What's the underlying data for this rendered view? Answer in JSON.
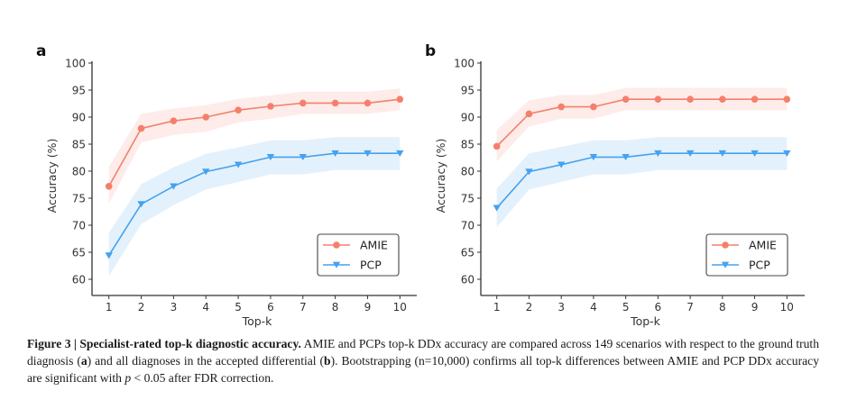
{
  "chart_data": [
    {
      "type": "line",
      "panel": "a",
      "title": "",
      "xlabel": "Top-k",
      "ylabel": "Accuracy (%)",
      "x": [
        1,
        2,
        3,
        4,
        5,
        6,
        7,
        8,
        9,
        10
      ],
      "xticks": [
        "1",
        "2",
        "3",
        "4",
        "5",
        "6",
        "7",
        "8",
        "9",
        "10"
      ],
      "yticks": [
        "60",
        "65",
        "70",
        "75",
        "80",
        "85",
        "90",
        "95",
        "100"
      ],
      "ylim": [
        57,
        100
      ],
      "grid": false,
      "legend_position": "bottom-right",
      "series": [
        {
          "name": "AMIE",
          "color": "#f4806b",
          "marker": "circle",
          "values": [
            77.2,
            87.9,
            89.3,
            90.0,
            91.3,
            92.0,
            92.6,
            92.6,
            92.6,
            93.3
          ],
          "ci_upper": [
            80.8,
            90.6,
            91.6,
            92.2,
            93.4,
            94.0,
            94.7,
            94.7,
            94.7,
            95.3
          ],
          "ci_lower": [
            74.0,
            85.3,
            86.7,
            87.3,
            89.0,
            89.7,
            90.6,
            90.6,
            90.6,
            91.3
          ]
        },
        {
          "name": "PCP",
          "color": "#45a2ee",
          "marker": "triangle-down",
          "values": [
            64.4,
            73.9,
            77.2,
            79.9,
            81.2,
            82.6,
            82.6,
            83.3,
            83.3,
            83.3
          ],
          "ci_upper": [
            68.6,
            77.6,
            80.7,
            83.2,
            84.4,
            85.7,
            85.7,
            86.3,
            86.3,
            86.3
          ],
          "ci_lower": [
            60.6,
            70.2,
            73.7,
            76.6,
            78.0,
            79.4,
            79.4,
            80.2,
            80.2,
            80.2
          ]
        }
      ]
    },
    {
      "type": "line",
      "panel": "b",
      "title": "",
      "xlabel": "Top-k",
      "ylabel": "Accuracy (%)",
      "x": [
        1,
        2,
        3,
        4,
        5,
        6,
        7,
        8,
        9,
        10
      ],
      "xticks": [
        "1",
        "2",
        "3",
        "4",
        "5",
        "6",
        "7",
        "8",
        "9",
        "10"
      ],
      "yticks": [
        "60",
        "65",
        "70",
        "75",
        "80",
        "85",
        "90",
        "95",
        "100"
      ],
      "ylim": [
        57,
        100
      ],
      "grid": false,
      "legend_position": "bottom-right",
      "series": [
        {
          "name": "AMIE",
          "color": "#f4806b",
          "marker": "circle",
          "values": [
            84.6,
            90.6,
            91.9,
            91.9,
            93.3,
            93.3,
            93.3,
            93.3,
            93.3,
            93.3
          ],
          "ci_upper": [
            87.6,
            93.1,
            94.1,
            94.1,
            95.4,
            95.4,
            95.4,
            95.4,
            95.4,
            95.4
          ],
          "ci_lower": [
            81.8,
            88.3,
            89.7,
            89.7,
            91.3,
            91.3,
            91.3,
            91.3,
            91.3,
            91.3
          ]
        },
        {
          "name": "PCP",
          "color": "#45a2ee",
          "marker": "triangle-down",
          "values": [
            73.2,
            79.9,
            81.2,
            82.6,
            82.6,
            83.3,
            83.3,
            83.3,
            83.3,
            83.3
          ],
          "ci_upper": [
            76.8,
            83.3,
            84.5,
            85.7,
            85.7,
            86.3,
            86.3,
            86.3,
            86.3,
            86.3
          ],
          "ci_lower": [
            69.6,
            76.6,
            78.0,
            79.4,
            79.4,
            80.2,
            80.2,
            80.2,
            80.2,
            80.2
          ]
        }
      ]
    }
  ],
  "caption": {
    "figure_label": "Figure 3 | Specialist-rated top-k diagnostic accuracy.",
    "text_1": " AMIE and PCPs top-k DDx accuracy are compared across 149 scenarios with respect to the ground truth diagnosis (",
    "ref_a": "a",
    "text_2": ") and all diagnoses in the accepted differential (",
    "ref_b": "b",
    "text_3": "). Bootstrapping (n=10,000) confirms all top-k differences between AMIE and PCP DDx accuracy are significant with ",
    "p_symbol": "p",
    "text_4": " < 0.05 after FDR correction."
  }
}
